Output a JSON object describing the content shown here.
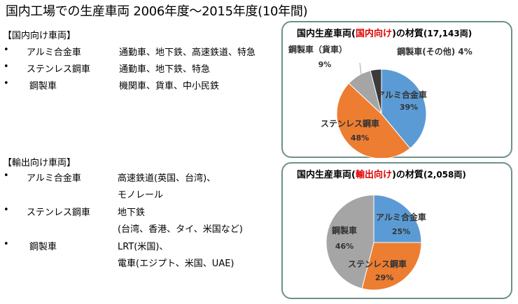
{
  "header": {
    "title": "国内工場での生産車両 2006年度〜2015年度(10年間)"
  },
  "domestic_list": {
    "heading": "【国内向け車両】",
    "items": [
      {
        "name": "アルミ合金車",
        "desc": "通勤車、地下鉄、高速鉄道、特急"
      },
      {
        "name": "ステンレス鋼車",
        "desc": "通勤車、地下鉄、特急"
      },
      {
        "name": "鋼製車",
        "desc": "機関車、貨車、中小民鉄"
      }
    ]
  },
  "export_list": {
    "heading": "【輸出向け車両】",
    "items": [
      {
        "name": "アルミ合金車",
        "desc": "高速鉄道(英国、台湾)、",
        "desc2": "モノレール"
      },
      {
        "name": "ステンレス鋼車",
        "desc": "地下鉄",
        "desc2": "(台湾、香港、タイ、米国など)"
      },
      {
        "name": "鋼製車",
        "desc": "LRT(米国)、",
        "desc2": "電車(エジプト、米国、UAE)"
      }
    ]
  },
  "panels": {
    "domestic": {
      "title_pre": "国内生産車両(",
      "title_red": "国内向け",
      "title_post": ")の材質",
      "title_count": "(17,143両)"
    },
    "export": {
      "title_pre": "国内生産車両(",
      "title_red": "輸出向け",
      "title_post": ")の材質",
      "title_count": "(2,058両)"
    }
  },
  "chart_data": [
    {
      "type": "pie",
      "title": "国内生産車両(国内向け)の材質(17,143両)",
      "slices": [
        {
          "label": "アルミ合金車",
          "value": 39,
          "pct": "39%",
          "color": "#5b9bd5"
        },
        {
          "label": "ステンレス鋼車",
          "value": 48,
          "pct": "48%",
          "color": "#ed7d31"
        },
        {
          "label": "鋼製車（貨車）",
          "value": 9,
          "pct": "9%",
          "color": "#a5a5a5"
        },
        {
          "label": "鋼製車(その他)",
          "value": 4,
          "pct": "4%",
          "color": "#3b3b3b"
        }
      ]
    },
    {
      "type": "pie",
      "title": "国内生産車両(輸出向け)の材質(2,058両)",
      "slices": [
        {
          "label": "アルミ合金車",
          "value": 25,
          "pct": "25%",
          "color": "#5b9bd5"
        },
        {
          "label": "ステンレス鋼車",
          "value": 29,
          "pct": "29%",
          "color": "#ed7d31"
        },
        {
          "label": "鋼製車",
          "value": 46,
          "pct": "46%",
          "color": "#a5a5a5"
        }
      ]
    }
  ]
}
